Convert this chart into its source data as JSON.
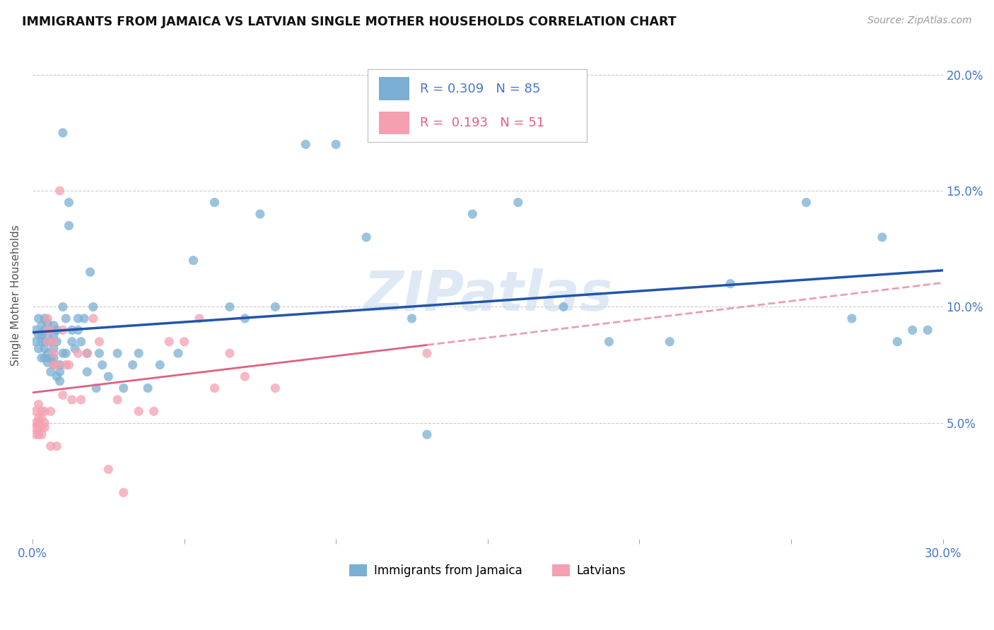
{
  "title": "IMMIGRANTS FROM JAMAICA VS LATVIAN SINGLE MOTHER HOUSEHOLDS CORRELATION CHART",
  "source": "Source: ZipAtlas.com",
  "ylabel": "Single Mother Households",
  "xlim": [
    0.0,
    0.3
  ],
  "ylim": [
    0.0,
    0.21
  ],
  "xticks": [
    0.0,
    0.05,
    0.1,
    0.15,
    0.2,
    0.25,
    0.3
  ],
  "xtick_labels": [
    "0.0%",
    "",
    "",
    "",
    "",
    "",
    "30.0%"
  ],
  "yticks": [
    0.0,
    0.05,
    0.1,
    0.15,
    0.2
  ],
  "ytick_labels_right": [
    "",
    "5.0%",
    "10.0%",
    "15.0%",
    "20.0%"
  ],
  "grid_color": "#cccccc",
  "background_color": "#ffffff",
  "blue_color": "#7bafd4",
  "pink_color": "#f4a0b0",
  "blue_line_color": "#2255aa",
  "pink_line_color": "#e06080",
  "pink_dash_color": "#e8a0b0",
  "axis_label_color": "#4477cc",
  "R_blue": 0.309,
  "N_blue": 85,
  "R_pink": 0.193,
  "N_pink": 51,
  "watermark": "ZIPatlas",
  "legend_labels": [
    "Immigrants from Jamaica",
    "Latvians"
  ],
  "blue_scatter_x": [
    0.001,
    0.001,
    0.002,
    0.002,
    0.002,
    0.003,
    0.003,
    0.003,
    0.003,
    0.004,
    0.004,
    0.004,
    0.004,
    0.004,
    0.005,
    0.005,
    0.005,
    0.005,
    0.006,
    0.006,
    0.006,
    0.006,
    0.007,
    0.007,
    0.007,
    0.007,
    0.007,
    0.008,
    0.008,
    0.008,
    0.009,
    0.009,
    0.009,
    0.01,
    0.01,
    0.01,
    0.011,
    0.011,
    0.012,
    0.012,
    0.013,
    0.013,
    0.014,
    0.015,
    0.015,
    0.016,
    0.017,
    0.018,
    0.018,
    0.019,
    0.02,
    0.021,
    0.022,
    0.023,
    0.025,
    0.028,
    0.03,
    0.033,
    0.035,
    0.038,
    0.042,
    0.048,
    0.053,
    0.06,
    0.065,
    0.07,
    0.075,
    0.08,
    0.09,
    0.1,
    0.11,
    0.125,
    0.13,
    0.145,
    0.16,
    0.175,
    0.19,
    0.21,
    0.23,
    0.255,
    0.27,
    0.28,
    0.285,
    0.29,
    0.295
  ],
  "blue_scatter_y": [
    0.085,
    0.09,
    0.082,
    0.095,
    0.088,
    0.085,
    0.078,
    0.092,
    0.088,
    0.085,
    0.078,
    0.095,
    0.09,
    0.082,
    0.087,
    0.093,
    0.08,
    0.076,
    0.09,
    0.085,
    0.078,
    0.072,
    0.088,
    0.092,
    0.082,
    0.078,
    0.075,
    0.085,
    0.09,
    0.07,
    0.068,
    0.075,
    0.072,
    0.175,
    0.1,
    0.08,
    0.095,
    0.08,
    0.145,
    0.135,
    0.09,
    0.085,
    0.082,
    0.09,
    0.095,
    0.085,
    0.095,
    0.08,
    0.072,
    0.115,
    0.1,
    0.065,
    0.08,
    0.075,
    0.07,
    0.08,
    0.065,
    0.075,
    0.08,
    0.065,
    0.075,
    0.08,
    0.12,
    0.145,
    0.1,
    0.095,
    0.14,
    0.1,
    0.17,
    0.17,
    0.13,
    0.095,
    0.045,
    0.14,
    0.145,
    0.1,
    0.085,
    0.085,
    0.11,
    0.145,
    0.095,
    0.13,
    0.085,
    0.09,
    0.09
  ],
  "pink_scatter_x": [
    0.001,
    0.001,
    0.001,
    0.001,
    0.002,
    0.002,
    0.002,
    0.002,
    0.002,
    0.003,
    0.003,
    0.003,
    0.003,
    0.004,
    0.004,
    0.004,
    0.005,
    0.005,
    0.005,
    0.006,
    0.006,
    0.006,
    0.007,
    0.007,
    0.007,
    0.008,
    0.008,
    0.009,
    0.01,
    0.01,
    0.011,
    0.012,
    0.013,
    0.015,
    0.016,
    0.018,
    0.02,
    0.022,
    0.025,
    0.028,
    0.03,
    0.035,
    0.04,
    0.045,
    0.05,
    0.055,
    0.06,
    0.065,
    0.07,
    0.08,
    0.13
  ],
  "pink_scatter_y": [
    0.055,
    0.05,
    0.048,
    0.045,
    0.058,
    0.045,
    0.05,
    0.052,
    0.048,
    0.055,
    0.048,
    0.045,
    0.052,
    0.055,
    0.05,
    0.048,
    0.095,
    0.09,
    0.085,
    0.09,
    0.055,
    0.04,
    0.085,
    0.08,
    0.075,
    0.075,
    0.04,
    0.15,
    0.062,
    0.09,
    0.075,
    0.075,
    0.06,
    0.08,
    0.06,
    0.08,
    0.095,
    0.085,
    0.03,
    0.06,
    0.02,
    0.055,
    0.055,
    0.085,
    0.085,
    0.095,
    0.065,
    0.08,
    0.07,
    0.065,
    0.08
  ]
}
